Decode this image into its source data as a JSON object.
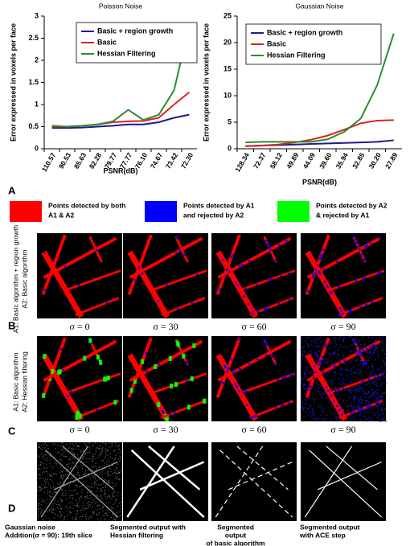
{
  "chart_data": [
    {
      "type": "line",
      "title": "Poisson Noise",
      "y_label": "Error expressed in voxels per face",
      "x_label": "PSNR(dB)",
      "categories": [
        "110.57",
        "90.53",
        "85.63",
        "82.28",
        "79.77",
        "77.77",
        "76.10",
        "74.67",
        "73.42",
        "72.30"
      ],
      "ylim": [
        0,
        3
      ],
      "yticks": [
        0,
        0.5,
        1,
        1.5,
        2,
        2.5,
        3
      ],
      "series": [
        {
          "name": "Basic + region growth",
          "color": "#1c1c8c",
          "values": [
            0.47,
            0.47,
            0.48,
            0.5,
            0.52,
            0.55,
            0.55,
            0.6,
            0.7,
            0.77
          ]
        },
        {
          "name": "Basic",
          "color": "#e02020",
          "values": [
            0.5,
            0.5,
            0.52,
            0.55,
            0.6,
            0.62,
            0.63,
            0.7,
            1.0,
            1.28
          ]
        },
        {
          "name": "Hessian Filtering",
          "color": "#2e8b2e",
          "values": [
            0.52,
            0.5,
            0.52,
            0.55,
            0.62,
            0.88,
            0.65,
            0.77,
            1.32,
            2.8
          ]
        }
      ]
    },
    {
      "type": "line",
      "title": "Gaussian Noise",
      "y_label": "Error expressed in voxels per face",
      "x_label": "PSNR(dB)",
      "categories": [
        "128.34",
        "72.37",
        "58.12",
        "49.89",
        "44.09",
        "39.60",
        "35.94",
        "32.85",
        "30.20",
        "27.89"
      ],
      "ylim": [
        0,
        25
      ],
      "yticks": [
        0,
        5,
        10,
        15,
        20,
        25
      ],
      "series": [
        {
          "name": "Basic + region growth",
          "color": "#1c1c8c",
          "values": [
            0.5,
            0.6,
            0.7,
            0.8,
            0.9,
            1.0,
            1.1,
            1.2,
            1.3,
            1.6
          ]
        },
        {
          "name": "Basic",
          "color": "#e02020",
          "values": [
            0.5,
            0.6,
            0.8,
            1.2,
            1.7,
            2.5,
            3.6,
            4.8,
            5.3,
            5.4
          ]
        },
        {
          "name": "Hessian Filtering",
          "color": "#2e8b2e",
          "values": [
            1.2,
            1.3,
            1.3,
            1.3,
            1.3,
            1.8,
            3.2,
            5.7,
            12,
            21.7
          ]
        }
      ]
    }
  ],
  "panels": {
    "labels": [
      "A",
      "B",
      "C",
      "D"
    ],
    "legend": [
      {
        "color": "#ff0000",
        "lines": [
          "Points detected by both",
          "A1 & A2"
        ]
      },
      {
        "color": "#0000ff",
        "lines": [
          "Points detected by A1",
          "and rejected by A2"
        ]
      },
      {
        "color": "#00ff00",
        "lines": [
          "Points detected by A2",
          "& rejected by A1"
        ]
      }
    ],
    "row_labels": [
      [
        "A1: Basic algorithm + region growth",
        "A2: Basic algorithm"
      ],
      [
        "A1: Basic algorithm",
        "A2: Hessian filtering"
      ]
    ],
    "sigma_captions": [
      [
        "σ = 0",
        "σ = 30",
        "σ = 60",
        "σ = 90"
      ],
      [
        "σ = 0",
        "σ = 30",
        "σ = 60",
        "σ = 90"
      ]
    ],
    "bottom_captions": [
      [
        "Gaussian noise",
        "Addition(σ = 90): 19th slice"
      ],
      [
        "Segmented output with",
        "Hessian filtering"
      ],
      [
        "Segmented",
        "output",
        "of basic algorithm"
      ],
      [
        "Segmented output",
        "with ACE step"
      ]
    ]
  }
}
